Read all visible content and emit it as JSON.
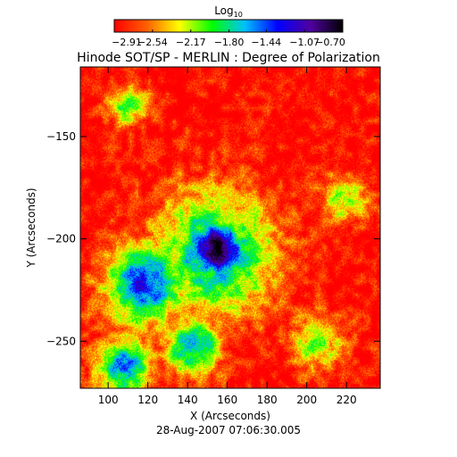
{
  "chart_data": {
    "type": "heatmap",
    "title": "Hinode SOT/SP - MERLIN : Degree of Polarization",
    "xlabel": "X (Arcseconds)",
    "ylabel": "Y (Arcseconds)",
    "footer": "28-Aug-2007 07:06:30.005",
    "colorbar": {
      "title": "Log",
      "title_subscript": "10",
      "range": [
        -2.91,
        -0.7
      ],
      "ticks": [
        -2.91,
        -2.54,
        -2.17,
        -1.8,
        -1.44,
        -1.07,
        -0.7
      ],
      "tick_labels": [
        "−2.91",
        "−2.54",
        "−2.17",
        "−1.80",
        "−1.44",
        "−1.07",
        "−0.70"
      ],
      "colormap": [
        "#ff0000",
        "#ff6000",
        "#ffff00",
        "#00ff00",
        "#00c0ff",
        "#0000ff",
        "#5000a0",
        "#000000"
      ]
    },
    "xlim": [
      86,
      237
    ],
    "ylim": [
      -273,
      -116
    ],
    "x_ticks": [
      100,
      120,
      140,
      160,
      180,
      200,
      220
    ],
    "y_ticks": [
      -150,
      -200,
      -250
    ],
    "x_tick_labels": [
      "100",
      "120",
      "140",
      "160",
      "180",
      "200",
      "220"
    ],
    "y_tick_labels": [
      "−150",
      "−200",
      "−250"
    ],
    "background_level": -2.9,
    "features": [
      {
        "name": "sunspot-umbra",
        "x": 155,
        "y": -205,
        "radius": 14,
        "peak": -0.7
      },
      {
        "name": "penumbra",
        "x": 153,
        "y": -207,
        "radius": 30,
        "peak": -1.6
      },
      {
        "name": "plage-west",
        "x": 118,
        "y": -222,
        "radius": 20,
        "peak": -1.35
      },
      {
        "name": "plage-southwest",
        "x": 108,
        "y": -262,
        "radius": 14,
        "peak": -1.5
      },
      {
        "name": "plage-south",
        "x": 142,
        "y": -252,
        "radius": 14,
        "peak": -1.6
      },
      {
        "name": "plage-north",
        "x": 110,
        "y": -135,
        "radius": 10,
        "peak": -2.0
      },
      {
        "name": "network-east",
        "x": 218,
        "y": -180,
        "radius": 12,
        "peak": -2.1
      },
      {
        "name": "network-southeast",
        "x": 205,
        "y": -250,
        "radius": 14,
        "peak": -2.1
      }
    ]
  }
}
